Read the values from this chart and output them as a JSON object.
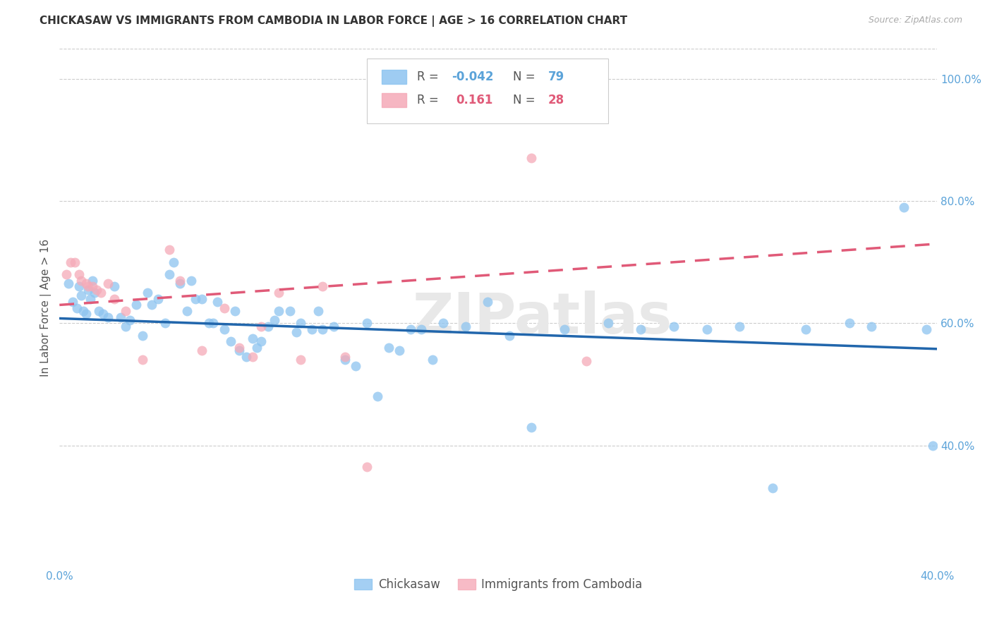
{
  "title": "CHICKASAW VS IMMIGRANTS FROM CAMBODIA IN LABOR FORCE | AGE > 16 CORRELATION CHART",
  "source": "Source: ZipAtlas.com",
  "ylabel": "In Labor Force | Age > 16",
  "xlim": [
    0.0,
    0.4
  ],
  "ylim": [
    0.2,
    1.05
  ],
  "xticks": [
    0.0,
    0.05,
    0.1,
    0.15,
    0.2,
    0.25,
    0.3,
    0.35,
    0.4
  ],
  "yticks": [
    0.4,
    0.6,
    0.8,
    1.0
  ],
  "ytick_labels": [
    "40.0%",
    "60.0%",
    "80.0%",
    "100.0%"
  ],
  "xtick_labels": [
    "0.0%",
    "",
    "",
    "",
    "",
    "",
    "",
    "",
    "40.0%"
  ],
  "legend_r_blue": "-0.042",
  "legend_n_blue": "79",
  "legend_r_pink": "0.161",
  "legend_n_pink": "28",
  "blue_color": "#8dc4f0",
  "pink_color": "#f5aab8",
  "blue_line_color": "#2166ac",
  "pink_line_color": "#e05a78",
  "tick_color": "#5ba3d9",
  "watermark": "ZIPatlas",
  "blue_scatter_x": [
    0.004,
    0.006,
    0.008,
    0.009,
    0.01,
    0.011,
    0.012,
    0.013,
    0.014,
    0.015,
    0.016,
    0.018,
    0.02,
    0.022,
    0.025,
    0.028,
    0.03,
    0.032,
    0.035,
    0.038,
    0.04,
    0.042,
    0.045,
    0.048,
    0.05,
    0.052,
    0.055,
    0.058,
    0.06,
    0.062,
    0.065,
    0.068,
    0.07,
    0.072,
    0.075,
    0.078,
    0.08,
    0.082,
    0.085,
    0.088,
    0.09,
    0.092,
    0.095,
    0.098,
    0.1,
    0.105,
    0.108,
    0.11,
    0.115,
    0.118,
    0.12,
    0.125,
    0.13,
    0.135,
    0.14,
    0.145,
    0.15,
    0.155,
    0.16,
    0.165,
    0.17,
    0.175,
    0.185,
    0.195,
    0.205,
    0.215,
    0.23,
    0.25,
    0.265,
    0.28,
    0.295,
    0.31,
    0.325,
    0.34,
    0.36,
    0.37,
    0.385,
    0.395,
    0.398
  ],
  "blue_scatter_y": [
    0.665,
    0.635,
    0.625,
    0.66,
    0.645,
    0.62,
    0.615,
    0.655,
    0.64,
    0.67,
    0.65,
    0.62,
    0.615,
    0.61,
    0.66,
    0.61,
    0.595,
    0.605,
    0.63,
    0.58,
    0.65,
    0.63,
    0.64,
    0.6,
    0.68,
    0.7,
    0.665,
    0.62,
    0.67,
    0.64,
    0.64,
    0.6,
    0.6,
    0.635,
    0.59,
    0.57,
    0.62,
    0.555,
    0.545,
    0.575,
    0.56,
    0.57,
    0.595,
    0.605,
    0.62,
    0.62,
    0.585,
    0.6,
    0.59,
    0.62,
    0.59,
    0.595,
    0.54,
    0.53,
    0.6,
    0.48,
    0.56,
    0.555,
    0.59,
    0.59,
    0.54,
    0.6,
    0.595,
    0.635,
    0.58,
    0.43,
    0.59,
    0.6,
    0.59,
    0.595,
    0.59,
    0.595,
    0.33,
    0.59,
    0.6,
    0.595,
    0.79,
    0.59,
    0.4
  ],
  "pink_scatter_x": [
    0.003,
    0.005,
    0.007,
    0.009,
    0.01,
    0.012,
    0.013,
    0.015,
    0.017,
    0.019,
    0.022,
    0.025,
    0.03,
    0.038,
    0.05,
    0.055,
    0.065,
    0.075,
    0.082,
    0.088,
    0.092,
    0.1,
    0.11,
    0.12,
    0.13,
    0.14,
    0.215,
    0.24
  ],
  "pink_scatter_y": [
    0.68,
    0.7,
    0.7,
    0.68,
    0.67,
    0.665,
    0.66,
    0.66,
    0.655,
    0.65,
    0.665,
    0.64,
    0.62,
    0.54,
    0.72,
    0.67,
    0.555,
    0.625,
    0.56,
    0.545,
    0.595,
    0.65,
    0.54,
    0.66,
    0.545,
    0.365,
    0.87,
    0.538
  ],
  "blue_line_x": [
    0.0,
    0.4
  ],
  "blue_line_y": [
    0.608,
    0.558
  ],
  "pink_line_x": [
    0.0,
    0.4
  ],
  "pink_line_y": [
    0.63,
    0.73
  ]
}
